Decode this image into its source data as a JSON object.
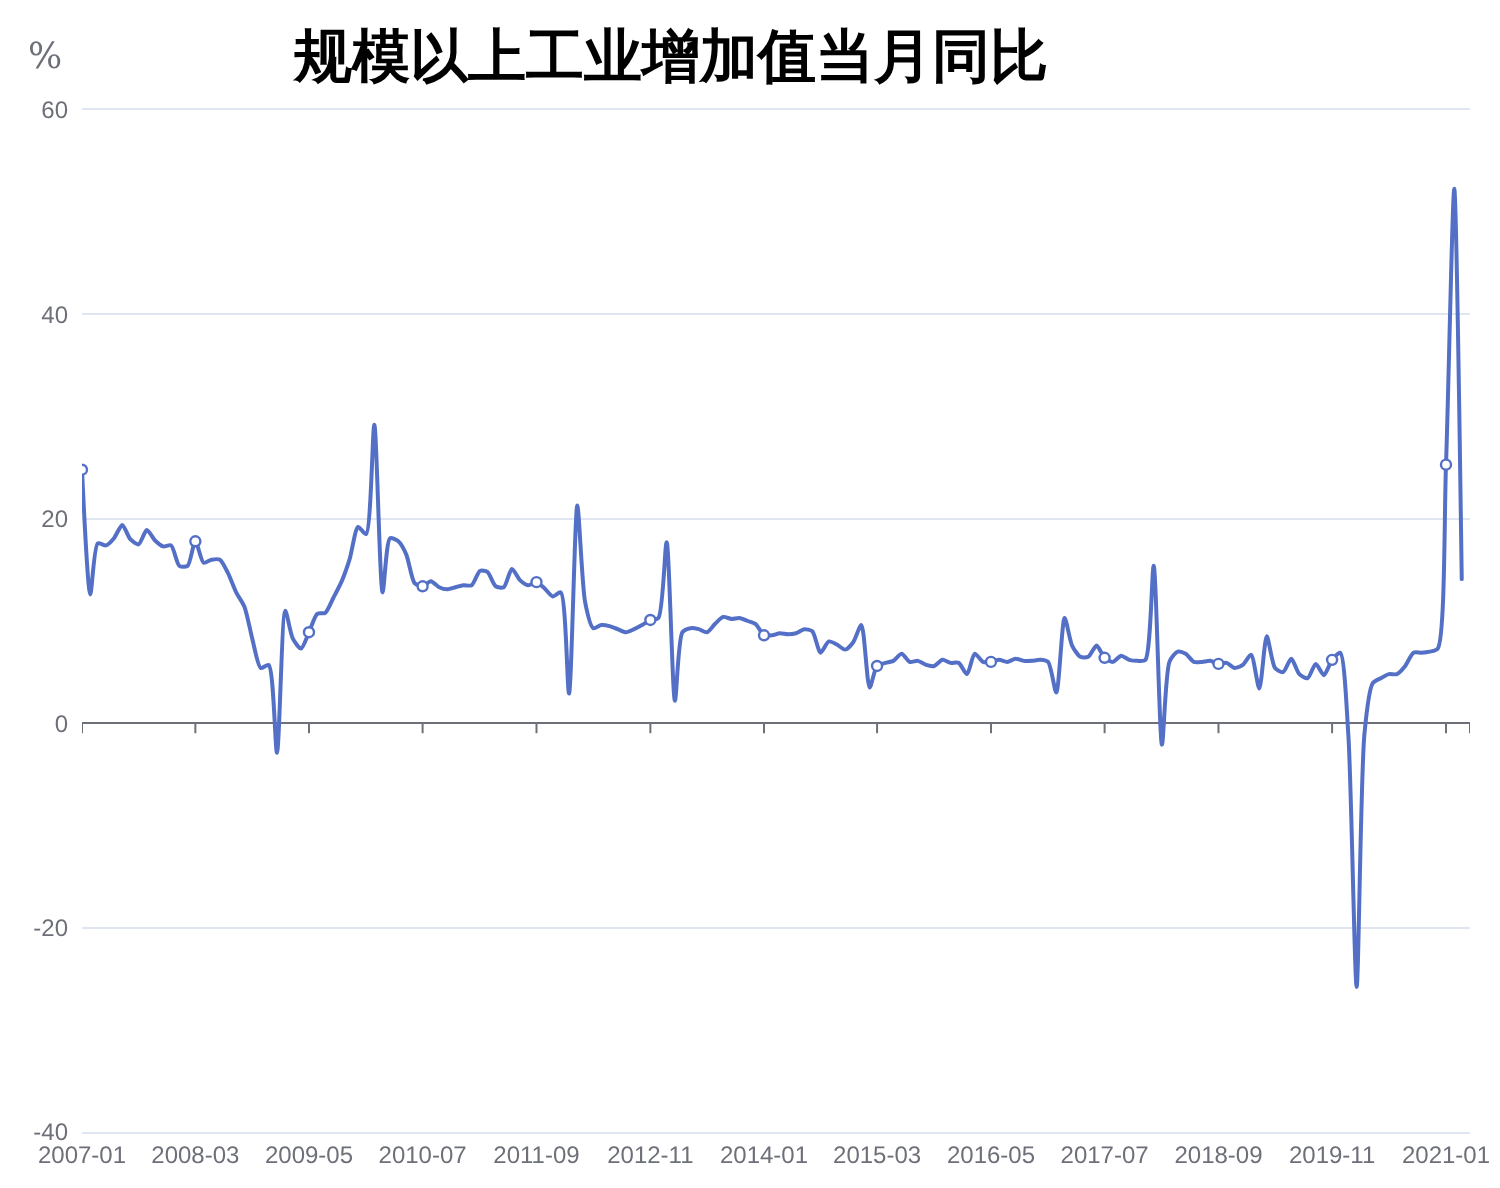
{
  "chart_data": {
    "type": "line",
    "title": "规模以上工业增加值当月同比",
    "ylabel": "%",
    "line_style": "solid",
    "grid": "y",
    "x": [
      "2007-01",
      "2007-02",
      "2007-03",
      "2007-04",
      "2007-05",
      "2007-06",
      "2007-07",
      "2007-08",
      "2007-09",
      "2007-10",
      "2007-11",
      "2007-12",
      "2008-01",
      "2008-02",
      "2008-03",
      "2008-04",
      "2008-05",
      "2008-06",
      "2008-07",
      "2008-08",
      "2008-09",
      "2008-10",
      "2008-11",
      "2008-12",
      "2009-01",
      "2009-02",
      "2009-03",
      "2009-04",
      "2009-05",
      "2009-06",
      "2009-07",
      "2009-08",
      "2009-09",
      "2009-10",
      "2009-11",
      "2009-12",
      "2010-01",
      "2010-02",
      "2010-03",
      "2010-04",
      "2010-05",
      "2010-06",
      "2010-07",
      "2010-08",
      "2010-09",
      "2010-10",
      "2010-11",
      "2010-12",
      "2011-01",
      "2011-02",
      "2011-03",
      "2011-04",
      "2011-05",
      "2011-06",
      "2011-07",
      "2011-08",
      "2011-09",
      "2011-10",
      "2011-11",
      "2011-12",
      "2012-01",
      "2012-02",
      "2012-03",
      "2012-04",
      "2012-05",
      "2012-06",
      "2012-07",
      "2012-08",
      "2012-09",
      "2012-10",
      "2012-11",
      "2012-12",
      "2013-01",
      "2013-02",
      "2013-03",
      "2013-04",
      "2013-05",
      "2013-06",
      "2013-07",
      "2013-08",
      "2013-09",
      "2013-10",
      "2013-11",
      "2013-12",
      "2014-01",
      "2014-02",
      "2014-03",
      "2014-04",
      "2014-05",
      "2014-06",
      "2014-07",
      "2014-08",
      "2014-09",
      "2014-10",
      "2014-11",
      "2014-12",
      "2015-01",
      "2015-02",
      "2015-03",
      "2015-04",
      "2015-05",
      "2015-06",
      "2015-07",
      "2015-08",
      "2015-09",
      "2015-10",
      "2015-11",
      "2015-12",
      "2016-01",
      "2016-02",
      "2016-03",
      "2016-04",
      "2016-05",
      "2016-06",
      "2016-07",
      "2016-08",
      "2016-09",
      "2016-10",
      "2016-11",
      "2016-12",
      "2017-01",
      "2017-02",
      "2017-03",
      "2017-04",
      "2017-05",
      "2017-06",
      "2017-07",
      "2017-08",
      "2017-09",
      "2017-10",
      "2017-11",
      "2017-12",
      "2018-01",
      "2018-02",
      "2018-03",
      "2018-04",
      "2018-05",
      "2018-06",
      "2018-07",
      "2018-08",
      "2018-09",
      "2018-10",
      "2018-11",
      "2018-12",
      "2019-01",
      "2019-02",
      "2019-03",
      "2019-04",
      "2019-05",
      "2019-06",
      "2019-07",
      "2019-08",
      "2019-09",
      "2019-10",
      "2019-11",
      "2019-12",
      "2020-01",
      "2020-02",
      "2020-03",
      "2020-04",
      "2020-05",
      "2020-06",
      "2020-07",
      "2020-08",
      "2020-09",
      "2020-10",
      "2020-11",
      "2020-12",
      "2021-01",
      "2021-02",
      "2021-03"
    ],
    "series": [
      {
        "color": "#5470c6",
        "values": [
          24.8,
          12.6,
          17.6,
          17.4,
          18.1,
          19.4,
          18.0,
          17.5,
          18.9,
          17.9,
          17.3,
          17.4,
          15.4,
          15.4,
          17.8,
          15.7,
          16.0,
          16.0,
          14.7,
          12.8,
          11.4,
          8.2,
          5.4,
          5.7,
          -2.9,
          11.0,
          8.3,
          7.3,
          8.9,
          10.7,
          10.8,
          12.3,
          13.9,
          16.1,
          19.2,
          18.5,
          29.2,
          12.8,
          18.1,
          17.8,
          16.5,
          13.7,
          13.4,
          13.9,
          13.3,
          13.1,
          13.3,
          13.5,
          13.5,
          14.9,
          14.8,
          13.4,
          13.3,
          15.1,
          14.0,
          13.5,
          13.8,
          13.2,
          12.4,
          12.8,
          2.9,
          21.3,
          11.9,
          9.3,
          9.6,
          9.5,
          9.2,
          8.9,
          9.2,
          9.6,
          10.1,
          10.3,
          17.7,
          2.2,
          8.9,
          9.3,
          9.2,
          8.9,
          9.7,
          10.4,
          10.2,
          10.3,
          10.0,
          9.7,
          8.6,
          8.6,
          8.8,
          8.7,
          8.8,
          9.2,
          9.0,
          6.9,
          8.0,
          7.7,
          7.2,
          7.9,
          9.6,
          3.5,
          5.6,
          5.9,
          6.1,
          6.8,
          6.0,
          6.1,
          5.7,
          5.6,
          6.2,
          5.9,
          5.9,
          4.8,
          6.8,
          6.0,
          6.0,
          6.2,
          6.0,
          6.3,
          6.1,
          6.1,
          6.2,
          6.0,
          3.0,
          10.3,
          7.6,
          6.5,
          6.5,
          7.6,
          6.4,
          6.0,
          6.6,
          6.2,
          6.1,
          6.2,
          15.4,
          -2.1,
          6.0,
          7.0,
          6.8,
          6.0,
          6.0,
          6.1,
          5.8,
          5.9,
          5.4,
          5.7,
          6.7,
          3.4,
          8.5,
          5.4,
          5.0,
          6.3,
          4.8,
          4.4,
          5.8,
          4.7,
          6.2,
          6.9,
          -1.2,
          -25.8,
          -1.1,
          3.9,
          4.4,
          4.8,
          4.8,
          5.6,
          6.9,
          6.9,
          7.0,
          7.3,
          25.3,
          52.3,
          14.1
        ]
      },
      {
        "type": "scatter",
        "color": "#5470c6",
        "x": [
          "2007-01",
          "2008-03",
          "2009-05",
          "2010-07",
          "2011-09",
          "2012-11",
          "2014-01",
          "2015-03",
          "2016-05",
          "2017-07",
          "2018-09",
          "2019-11",
          "2021-01"
        ],
        "values": [
          24.8,
          17.8,
          8.9,
          13.4,
          13.8,
          10.1,
          8.6,
          5.6,
          6.0,
          6.4,
          5.8,
          6.2,
          25.3
        ]
      }
    ],
    "xlim": [
      "2007-01",
      "2021-04"
    ],
    "xticks": [
      "2007-01",
      "2008-03",
      "2009-05",
      "2010-07",
      "2011-09",
      "2012-11",
      "2014-01",
      "2015-03",
      "2016-05",
      "2017-07",
      "2018-09",
      "2019-11",
      "2021-01",
      {
        "value": "2021-04",
        "label": null
      }
    ],
    "ylim": [
      -40,
      60
    ],
    "yticks": [
      -40,
      -20,
      0,
      20,
      40,
      60
    ]
  }
}
